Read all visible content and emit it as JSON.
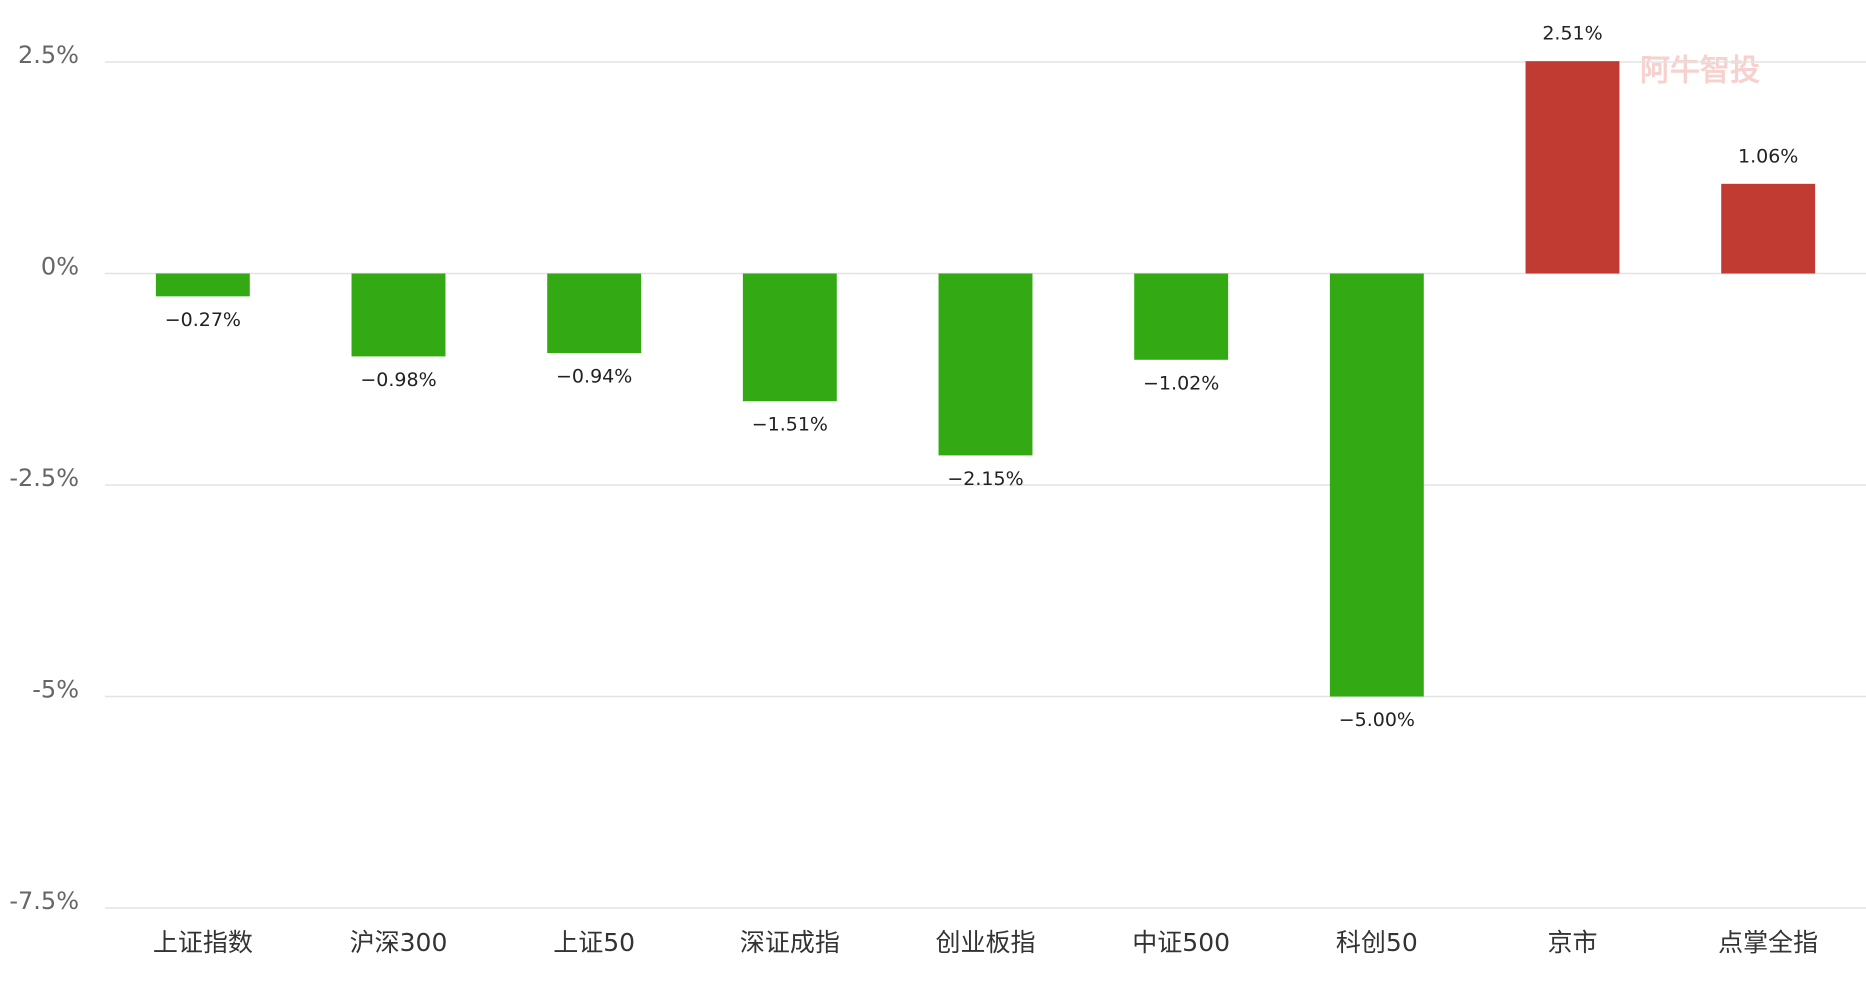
{
  "chart_data": {
    "type": "bar",
    "categories": [
      "上证指数",
      "沪深300",
      "上证50",
      "深证成指",
      "创业板指",
      "中证500",
      "科创50",
      "京市",
      "点掌全指"
    ],
    "values": [
      -0.27,
      -0.98,
      -0.94,
      -1.51,
      -2.15,
      -1.02,
      -5.0,
      2.51,
      1.06
    ],
    "value_labels": [
      "−0.27%",
      "−0.98%",
      "−0.94%",
      "−1.51%",
      "−2.15%",
      "−1.02%",
      "−5.00%",
      "2.51%",
      "1.06%"
    ],
    "positive_color": "#c23b32",
    "negative_color": "#33aa14",
    "ylim": [
      -7.5,
      2.5
    ],
    "yticks": [
      {
        "value": 2.5,
        "label": "2.5%"
      },
      {
        "value": 0,
        "label": "0%"
      },
      {
        "value": -2.5,
        "label": "-2.5%"
      },
      {
        "value": -5,
        "label": "-5%"
      },
      {
        "value": -7.5,
        "label": "-7.5%"
      }
    ],
    "grid": true,
    "watermark": "阿牛智投"
  }
}
